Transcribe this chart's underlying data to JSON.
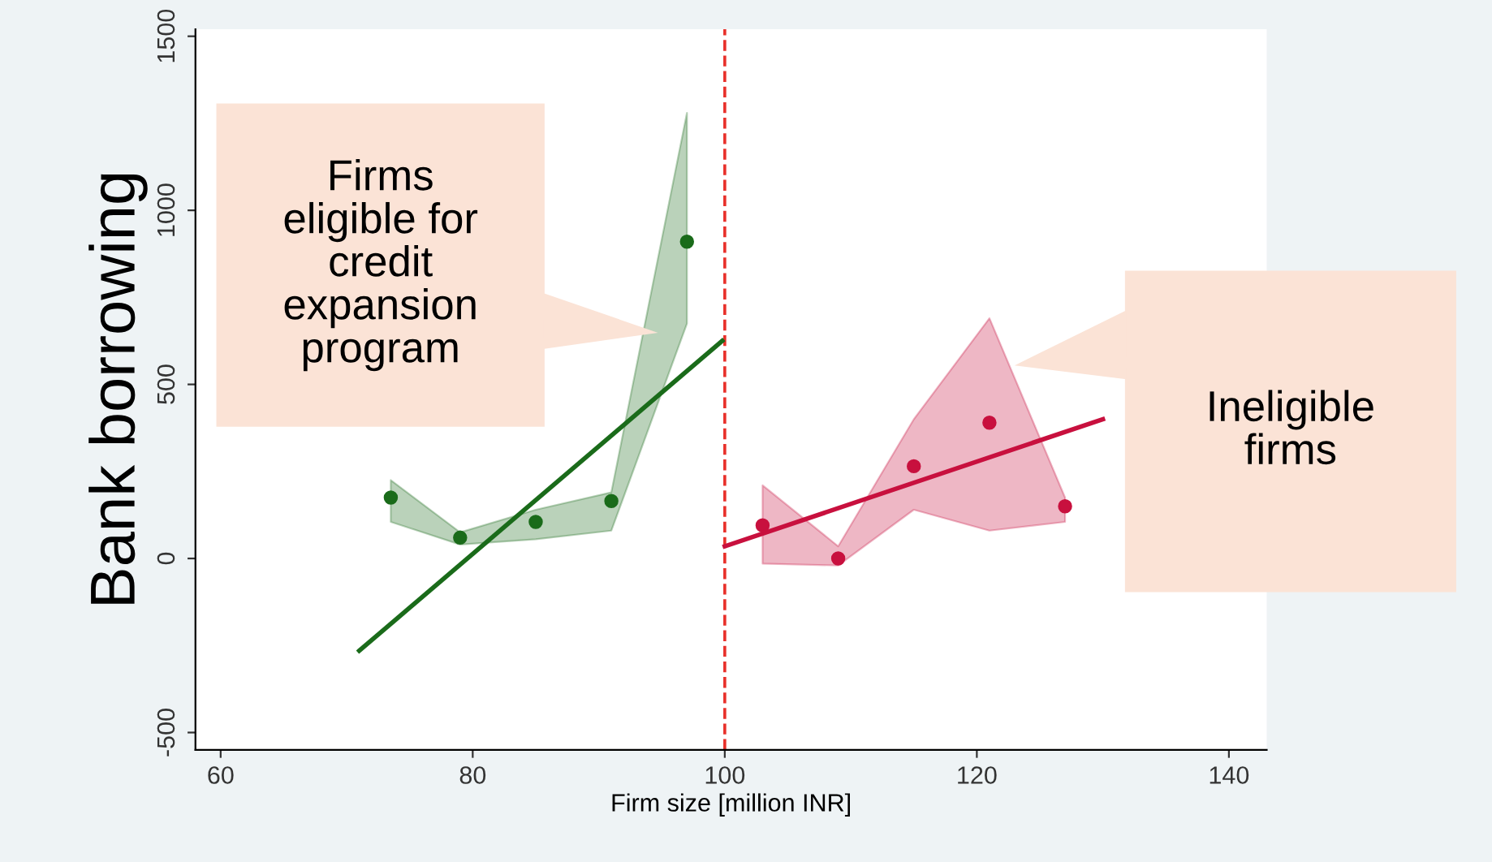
{
  "chart_data": {
    "type": "scatter",
    "xlabel": "Firm size [million INR]",
    "ylabel": "Bank borrowing",
    "xlim": [
      58,
      143
    ],
    "ylim": [
      -550,
      1520
    ],
    "xticks": [
      60,
      80,
      100,
      120,
      140
    ],
    "yticks": [
      -500,
      0,
      500,
      1000,
      1500
    ],
    "grid": false,
    "legend": false,
    "series": [
      {
        "marker": "circle",
        "color": "#1a6b1a",
        "x": [
          73.5,
          79,
          85,
          91,
          97
        ],
        "values": [
          175,
          60,
          105,
          165,
          910
        ],
        "lower": [
          105,
          40,
          55,
          80,
          675
        ],
        "upper": [
          225,
          75,
          140,
          190,
          1280
        ]
      },
      {
        "type": "line",
        "color": "#1a6b1a",
        "x": [
          71,
          99.8
        ],
        "values": [
          -265,
          625
        ]
      },
      {
        "marker": "circle",
        "color": "#c8103e",
        "x": [
          103,
          109,
          115,
          121,
          127
        ],
        "values": [
          95,
          0,
          265,
          390,
          150
        ],
        "lower": [
          -15,
          -20,
          140,
          80,
          105
        ],
        "upper": [
          210,
          35,
          400,
          690,
          175
        ]
      },
      {
        "type": "line",
        "color": "#c8103e",
        "x": [
          100,
          130
        ],
        "values": [
          35,
          400
        ]
      }
    ],
    "ref_lines": [
      {
        "axis": "x",
        "value": 100,
        "color": "#e8302a",
        "line_style": "dashed"
      }
    ],
    "annotations": [
      "Firms\neligible for\ncredit\nexpansion\nprogram",
      "Ineligible\nfirms"
    ]
  }
}
